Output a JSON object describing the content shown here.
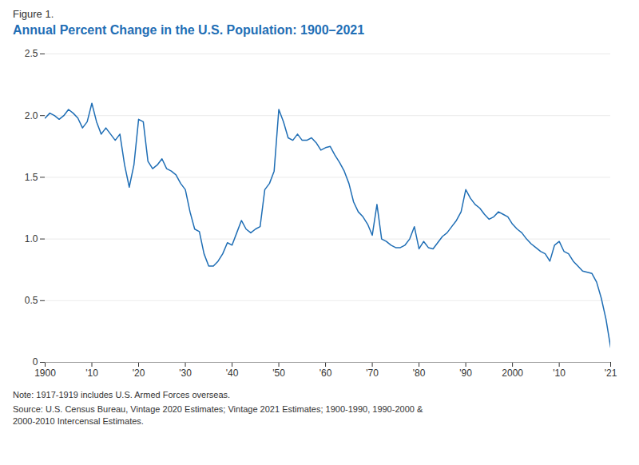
{
  "chart_data": {
    "type": "line",
    "subtitle": "Figure 1.",
    "title": "Annual Percent Change in the U.S. Population: 1900–2021",
    "annotations": [
      "Note: 1917-1919 includes U.S. Armed Forces overseas.",
      "Source: U.S. Census Bureau, Vintage 2020 Estimates; Vintage 2021 Estimates; 1900-1990, 1990-2000 &\n2000-2010 Intercensal Estimates."
    ],
    "color": "#1f6eb5",
    "x": [
      1900,
      1901,
      1902,
      1903,
      1904,
      1905,
      1906,
      1907,
      1908,
      1909,
      1910,
      1911,
      1912,
      1913,
      1914,
      1915,
      1916,
      1917,
      1918,
      1919,
      1920,
      1921,
      1922,
      1923,
      1924,
      1925,
      1926,
      1927,
      1928,
      1929,
      1930,
      1931,
      1932,
      1933,
      1934,
      1935,
      1936,
      1937,
      1938,
      1939,
      1940,
      1941,
      1942,
      1943,
      1944,
      1945,
      1946,
      1947,
      1948,
      1949,
      1950,
      1951,
      1952,
      1953,
      1954,
      1955,
      1956,
      1957,
      1958,
      1959,
      1960,
      1961,
      1962,
      1963,
      1964,
      1965,
      1966,
      1967,
      1968,
      1969,
      1970,
      1971,
      1972,
      1973,
      1974,
      1975,
      1976,
      1977,
      1978,
      1979,
      1980,
      1981,
      1982,
      1983,
      1984,
      1985,
      1986,
      1987,
      1988,
      1989,
      1990,
      1991,
      1992,
      1993,
      1994,
      1995,
      1996,
      1997,
      1998,
      1999,
      2000,
      2001,
      2002,
      2003,
      2004,
      2005,
      2006,
      2007,
      2008,
      2009,
      2010,
      2011,
      2012,
      2013,
      2014,
      2015,
      2016,
      2017,
      2018,
      2019,
      2020,
      2021
    ],
    "values": [
      1.98,
      2.02,
      2.0,
      1.97,
      2.0,
      2.05,
      2.02,
      1.98,
      1.9,
      1.95,
      2.1,
      1.95,
      1.85,
      1.9,
      1.85,
      1.8,
      1.85,
      1.6,
      1.42,
      1.6,
      1.97,
      1.95,
      1.63,
      1.57,
      1.6,
      1.65,
      1.57,
      1.55,
      1.52,
      1.45,
      1.4,
      1.22,
      1.08,
      1.06,
      0.88,
      0.78,
      0.78,
      0.82,
      0.88,
      0.97,
      0.95,
      1.05,
      1.15,
      1.08,
      1.05,
      1.08,
      1.1,
      1.4,
      1.45,
      1.55,
      2.05,
      1.95,
      1.82,
      1.8,
      1.85,
      1.8,
      1.8,
      1.82,
      1.78,
      1.72,
      1.74,
      1.75,
      1.68,
      1.62,
      1.55,
      1.45,
      1.3,
      1.22,
      1.18,
      1.12,
      1.03,
      1.28,
      1.0,
      0.98,
      0.95,
      0.93,
      0.93,
      0.95,
      1.0,
      1.1,
      0.92,
      0.98,
      0.93,
      0.92,
      0.97,
      1.02,
      1.05,
      1.1,
      1.15,
      1.22,
      1.4,
      1.33,
      1.28,
      1.25,
      1.2,
      1.16,
      1.18,
      1.22,
      1.2,
      1.18,
      1.12,
      1.08,
      1.05,
      1.0,
      0.96,
      0.93,
      0.9,
      0.88,
      0.82,
      0.95,
      0.98,
      0.9,
      0.88,
      0.82,
      0.78,
      0.74,
      0.73,
      0.72,
      0.65,
      0.52,
      0.35,
      0.12
    ],
    "xlim": [
      1900,
      2021
    ],
    "xticks": [
      1900,
      {
        "value": 1910,
        "label": "'10"
      },
      {
        "value": 1920,
        "label": "'20"
      },
      {
        "value": 1930,
        "label": "'30"
      },
      {
        "value": 1940,
        "label": "'40"
      },
      {
        "value": 1950,
        "label": "'50"
      },
      {
        "value": 1960,
        "label": "'60"
      },
      {
        "value": 1970,
        "label": "'70"
      },
      {
        "value": 1980,
        "label": "'80"
      },
      {
        "value": 1990,
        "label": "'90"
      },
      2000,
      {
        "value": 2010,
        "label": "'10"
      },
      {
        "value": 2021,
        "label": "'21"
      }
    ],
    "ylim": [
      0,
      2.5
    ],
    "yticks": [
      0,
      0.5,
      {
        "value": 1,
        "label": "1.0"
      },
      1.5,
      {
        "value": 2,
        "label": "2.0"
      },
      2.5
    ],
    "grid": true
  }
}
